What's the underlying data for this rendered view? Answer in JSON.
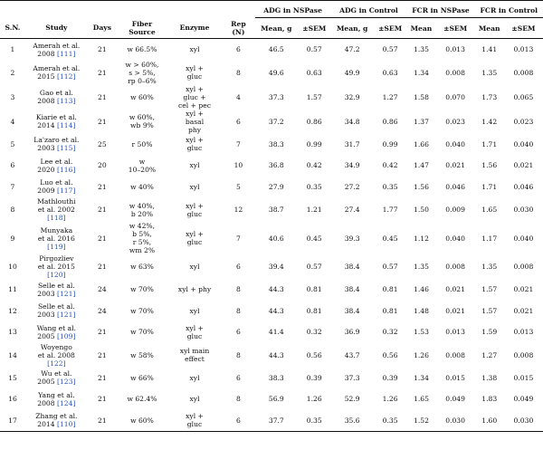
{
  "header": {
    "groups": {
      "adg_nspase": "ADG in NSPase",
      "adg_control": "ADG in Control",
      "fcr_nspase": "FCR in NSPase",
      "fcr_control": "FCR in Control"
    },
    "sn": "S.N.",
    "study": "Study",
    "days": "Days",
    "fiber": [
      "Fiber",
      "Source"
    ],
    "enzyme": "Enzyme",
    "rep": [
      "Rep",
      "(N)"
    ],
    "mean_g": "Mean, g",
    "sem": "±SEM",
    "mean": "Mean"
  },
  "rows": [
    {
      "sn": "1",
      "study": [
        "Amerah et al.",
        "2008 "
      ],
      "ref": "[111]",
      "days": "21",
      "fiber": [
        "w 66.5%"
      ],
      "enzyme": [
        "xyl"
      ],
      "rep": "6",
      "adg_n_mean": "46.5",
      "adg_n_sem": "0.57",
      "adg_c_mean": "47.2",
      "adg_c_sem": "0.57",
      "fcr_n_mean": "1.35",
      "fcr_n_sem": "0.013",
      "fcr_c_mean": "1.41",
      "fcr_c_sem": "0.013"
    },
    {
      "sn": "2",
      "study": [
        "Amerah et al.",
        "2015 "
      ],
      "ref": "[112]",
      "days": "21",
      "fiber": [
        "w > 60%,",
        "s > 5%,",
        "rp 0–6%"
      ],
      "enzyme": [
        "xyl +",
        "gluc"
      ],
      "rep": "8",
      "adg_n_mean": "49.6",
      "adg_n_sem": "0.63",
      "adg_c_mean": "49.9",
      "adg_c_sem": "0.63",
      "fcr_n_mean": "1.34",
      "fcr_n_sem": "0.008",
      "fcr_c_mean": "1.35",
      "fcr_c_sem": "0.008"
    },
    {
      "sn": "3",
      "study": [
        "Gao et al.",
        "2008 "
      ],
      "ref": "[113]",
      "days": "21",
      "fiber": [
        "w 60%"
      ],
      "enzyme": [
        "xyl +",
        "gluc +",
        "cel + pec"
      ],
      "rep": "4",
      "adg_n_mean": "37.3",
      "adg_n_sem": "1.57",
      "adg_c_mean": "32.9",
      "adg_c_sem": "1.27",
      "fcr_n_mean": "1.58",
      "fcr_n_sem": "0.070",
      "fcr_c_mean": "1.73",
      "fcr_c_sem": "0.065"
    },
    {
      "sn": "4",
      "study": [
        "Kiarie et al.",
        "2014 "
      ],
      "ref": "[114]",
      "days": "21",
      "fiber": [
        "w 60%,",
        "wb 9%"
      ],
      "enzyme": [
        "xyl +",
        "basal",
        "phy"
      ],
      "rep": "6",
      "adg_n_mean": "37.2",
      "adg_n_sem": "0.86",
      "adg_c_mean": "34.8",
      "adg_c_sem": "0.86",
      "fcr_n_mean": "1.37",
      "fcr_n_sem": "0.023",
      "fcr_c_mean": "1.42",
      "fcr_c_sem": "0.023"
    },
    {
      "sn": "5",
      "study": [
        "La'zaro et al.",
        "2003 "
      ],
      "ref": "[115]",
      "days": "25",
      "fiber": [
        "r 50%"
      ],
      "enzyme": [
        "xyl +",
        "gluc"
      ],
      "rep": "7",
      "adg_n_mean": "38.3",
      "adg_n_sem": "0.99",
      "adg_c_mean": "31.7",
      "adg_c_sem": "0.99",
      "fcr_n_mean": "1.66",
      "fcr_n_sem": "0.040",
      "fcr_c_mean": "1.71",
      "fcr_c_sem": "0.040"
    },
    {
      "sn": "6",
      "study": [
        "Lee et al.",
        "2020 "
      ],
      "ref": "[116]",
      "days": "20",
      "fiber": [
        "w",
        "10–20%"
      ],
      "enzyme": [
        "xyl"
      ],
      "rep": "10",
      "adg_n_mean": "36.8",
      "adg_n_sem": "0.42",
      "adg_c_mean": "34.9",
      "adg_c_sem": "0.42",
      "fcr_n_mean": "1.47",
      "fcr_n_sem": "0.021",
      "fcr_c_mean": "1.56",
      "fcr_c_sem": "0.021"
    },
    {
      "sn": "7",
      "study": [
        "Luo et al.",
        "2009 "
      ],
      "ref": "[117]",
      "days": "21",
      "fiber": [
        "w 40%"
      ],
      "enzyme": [
        "xyl"
      ],
      "rep": "5",
      "adg_n_mean": "27.9",
      "adg_n_sem": "0.35",
      "adg_c_mean": "27.2",
      "adg_c_sem": "0.35",
      "fcr_n_mean": "1.56",
      "fcr_n_sem": "0.046",
      "fcr_c_mean": "1.71",
      "fcr_c_sem": "0.046"
    },
    {
      "sn": "8",
      "study": [
        "Mathlouthi",
        "et al. 2002",
        ""
      ],
      "ref": "[118]",
      "days": "21",
      "fiber": [
        "w 40%,",
        "b 20%"
      ],
      "enzyme": [
        "xyl +",
        "gluc"
      ],
      "rep": "12",
      "adg_n_mean": "38.7",
      "adg_n_sem": "1.21",
      "adg_c_mean": "27.4",
      "adg_c_sem": "1.77",
      "fcr_n_mean": "1.50",
      "fcr_n_sem": "0.009",
      "fcr_c_mean": "1.65",
      "fcr_c_sem": "0.030"
    },
    {
      "sn": "9",
      "study": [
        "Munyaka",
        "et al. 2016",
        ""
      ],
      "ref": "[119]",
      "days": "21",
      "fiber": [
        "w 42%,",
        "b 5%,",
        "r 5%,",
        "wm 2%"
      ],
      "enzyme": [
        "xyl +",
        "gluc"
      ],
      "rep": "7",
      "adg_n_mean": "40.6",
      "adg_n_sem": "0.45",
      "adg_c_mean": "39.3",
      "adg_c_sem": "0.45",
      "fcr_n_mean": "1.12",
      "fcr_n_sem": "0.040",
      "fcr_c_mean": "1.17",
      "fcr_c_sem": "0.040"
    },
    {
      "sn": "10",
      "study": [
        "Pirgozliev",
        "et al. 2015",
        ""
      ],
      "ref": "[120]",
      "days": "21",
      "fiber": [
        "w 63%"
      ],
      "enzyme": [
        "xyl"
      ],
      "rep": "6",
      "adg_n_mean": "39.4",
      "adg_n_sem": "0.57",
      "adg_c_mean": "38.4",
      "adg_c_sem": "0.57",
      "fcr_n_mean": "1.35",
      "fcr_n_sem": "0.008",
      "fcr_c_mean": "1.35",
      "fcr_c_sem": "0.008"
    },
    {
      "sn": "11",
      "study": [
        "Selle et al.",
        "2003 "
      ],
      "ref": "[121]",
      "days": "24",
      "fiber": [
        "w 70%"
      ],
      "enzyme": [
        "xyl + phy"
      ],
      "rep": "8",
      "adg_n_mean": "44.3",
      "adg_n_sem": "0.81",
      "adg_c_mean": "38.4",
      "adg_c_sem": "0.81",
      "fcr_n_mean": "1.46",
      "fcr_n_sem": "0.021",
      "fcr_c_mean": "1.57",
      "fcr_c_sem": "0.021"
    },
    {
      "sn": "12",
      "study": [
        "Selle et al.",
        "2003 "
      ],
      "ref": "[121]",
      "days": "24",
      "fiber": [
        "w 70%"
      ],
      "enzyme": [
        "xyl"
      ],
      "rep": "8",
      "adg_n_mean": "44.3",
      "adg_n_sem": "0.81",
      "adg_c_mean": "38.4",
      "adg_c_sem": "0.81",
      "fcr_n_mean": "1.48",
      "fcr_n_sem": "0.021",
      "fcr_c_mean": "1.57",
      "fcr_c_sem": "0.021"
    },
    {
      "sn": "13",
      "study": [
        "Wang et al.",
        "2005 "
      ],
      "ref": "[109]",
      "days": "21",
      "fiber": [
        "w 70%"
      ],
      "enzyme": [
        "xyl +",
        "gluc"
      ],
      "rep": "6",
      "adg_n_mean": "41.4",
      "adg_n_sem": "0.32",
      "adg_c_mean": "36.9",
      "adg_c_sem": "0.32",
      "fcr_n_mean": "1.53",
      "fcr_n_sem": "0.013",
      "fcr_c_mean": "1.59",
      "fcr_c_sem": "0.013"
    },
    {
      "sn": "14",
      "study": [
        "Woyengo",
        "et al. 2008",
        ""
      ],
      "ref": "[122]",
      "days": "21",
      "fiber": [
        "w 58%"
      ],
      "enzyme": [
        "xyl main",
        "effect"
      ],
      "rep": "8",
      "adg_n_mean": "44.3",
      "adg_n_sem": "0.56",
      "adg_c_mean": "43.7",
      "adg_c_sem": "0.56",
      "fcr_n_mean": "1.26",
      "fcr_n_sem": "0.008",
      "fcr_c_mean": "1.27",
      "fcr_c_sem": "0.008"
    },
    {
      "sn": "15",
      "study": [
        "Wu et al.",
        "2005 "
      ],
      "ref": "[123]",
      "days": "21",
      "fiber": [
        "w 66%"
      ],
      "enzyme": [
        "xyl"
      ],
      "rep": "6",
      "adg_n_mean": "38.3",
      "adg_n_sem": "0.39",
      "adg_c_mean": "37.3",
      "adg_c_sem": "0.39",
      "fcr_n_mean": "1.34",
      "fcr_n_sem": "0.015",
      "fcr_c_mean": "1.38",
      "fcr_c_sem": "0.015"
    },
    {
      "sn": "16",
      "study": [
        "Yang et al.",
        "2008 "
      ],
      "ref": "[124]",
      "days": "21",
      "fiber": [
        "w 62.4%"
      ],
      "enzyme": [
        "xyl"
      ],
      "rep": "8",
      "adg_n_mean": "56.9",
      "adg_n_sem": "1.26",
      "adg_c_mean": "52.9",
      "adg_c_sem": "1.26",
      "fcr_n_mean": "1.65",
      "fcr_n_sem": "0.049",
      "fcr_c_mean": "1.83",
      "fcr_c_sem": "0.049"
    },
    {
      "sn": "17",
      "study": [
        "Zhang et al.",
        "2014 "
      ],
      "ref": "[110]",
      "days": "21",
      "fiber": [
        "w 60%"
      ],
      "enzyme": [
        "xyl +",
        "gluc"
      ],
      "rep": "6",
      "adg_n_mean": "37.7",
      "adg_n_sem": "0.35",
      "adg_c_mean": "35.6",
      "adg_c_sem": "0.35",
      "fcr_n_mean": "1.52",
      "fcr_n_sem": "0.030",
      "fcr_c_mean": "1.60",
      "fcr_c_sem": "0.030"
    }
  ]
}
